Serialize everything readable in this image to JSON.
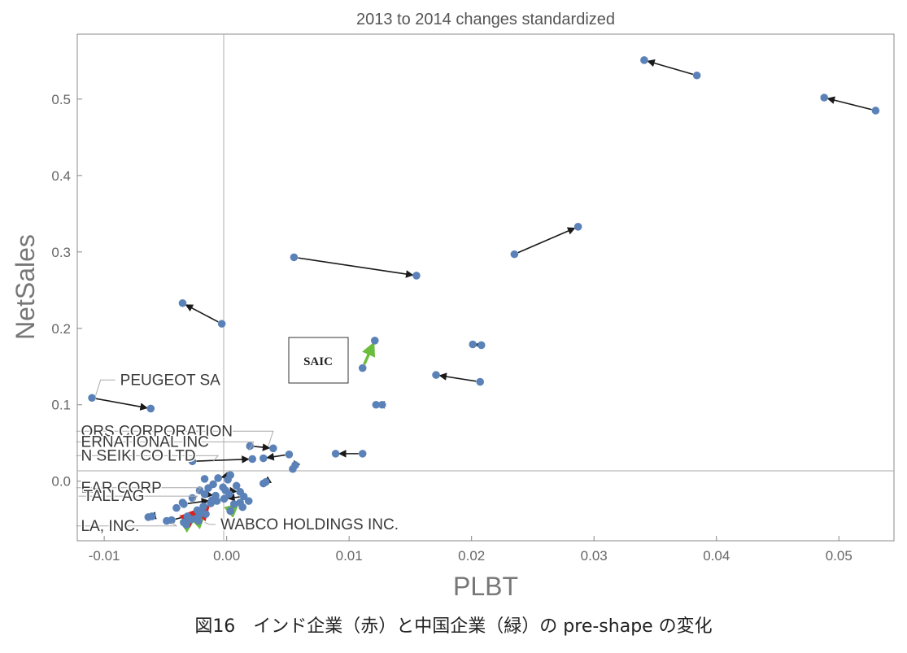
{
  "chart_data": {
    "type": "scatter",
    "title": "2013 to 2014 changes standardized",
    "xlabel": "PLBT",
    "ylabel": "NetSales",
    "xlim": [
      -0.0122,
      0.0545
    ],
    "ylim": [
      -0.078,
      0.585
    ],
    "xticks": [
      -0.01,
      0.0,
      0.01,
      0.02,
      0.03,
      0.04,
      0.05
    ],
    "xtick_labels": [
      "-0.01",
      "0.00",
      "0.01",
      "0.02",
      "0.03",
      "0.04",
      "0.05"
    ],
    "yticks": [
      0.0,
      0.1,
      0.2,
      0.3,
      0.4,
      0.5
    ],
    "ytick_labels": [
      "0.0",
      "0.1",
      "0.2",
      "0.3",
      "0.4",
      "0.5"
    ],
    "grid": false,
    "reference_lines": {
      "x": 0,
      "y": 0
    },
    "colors": {
      "point": "#5b82b8",
      "arrow": "#1a1a1a",
      "china_arrow": "#6dbd3c",
      "india_arrow": "#e02020",
      "axes_line": "#bbbbbb",
      "text": "#555555"
    },
    "series": [
      {
        "values": [
          {
            "x0": 0.0384,
            "y0": 0.531,
            "x1": 0.0341,
            "y1": 0.551
          },
          {
            "x0": 0.053,
            "y0": 0.485,
            "x1": 0.0488,
            "y1": 0.502
          },
          {
            "x0": 0.0235,
            "y0": 0.297,
            "x1": 0.0287,
            "y1": 0.333
          },
          {
            "x0": 0.0055,
            "y0": 0.293,
            "x1": 0.0155,
            "y1": 0.269
          },
          {
            "x0": -0.0004,
            "y0": 0.206,
            "x1": -0.0036,
            "y1": 0.233
          },
          {
            "x0": -0.011,
            "y0": 0.109,
            "x1": -0.0062,
            "y1": 0.095
          },
          {
            "x0": 0.0207,
            "y0": 0.13,
            "x1": 0.0171,
            "y1": 0.139
          },
          {
            "x0": 0.0208,
            "y0": 0.178,
            "x1": 0.0201,
            "y1": 0.179
          },
          {
            "x0": 0.0127,
            "y0": 0.1,
            "x1": 0.0122,
            "y1": 0.1
          },
          {
            "x0": 0.0111,
            "y0": 0.036,
            "x1": 0.0089,
            "y1": 0.036
          },
          {
            "x0": 0.0019,
            "y0": 0.046,
            "x1": 0.0038,
            "y1": 0.043
          },
          {
            "x0": 0.0051,
            "y0": 0.035,
            "x1": 0.003,
            "y1": 0.03
          },
          {
            "x0": -0.0028,
            "y0": 0.026,
            "x1": 0.0021,
            "y1": 0.029
          },
          {
            "x0": 0.0056,
            "y0": 0.021,
            "x1": 0.0054,
            "y1": 0.016
          },
          {
            "x0": 0.0032,
            "y0": -0.001,
            "x1": 0.003,
            "y1": -0.003
          },
          {
            "x0": 0.0003,
            "y0": 0.008,
            "x1": -0.0007,
            "y1": 0.004
          },
          {
            "x0": -0.0001,
            "y0": -0.012,
            "x1": 0.0011,
            "y1": -0.014
          },
          {
            "x0": -0.0035,
            "y0": -0.03,
            "x1": -0.0012,
            "y1": -0.025
          },
          {
            "x0": -0.0061,
            "y0": -0.046,
            "x1": -0.0064,
            "y1": -0.047
          },
          {
            "x0": -0.0018,
            "y0": -0.017,
            "x1": -0.0009,
            "y1": -0.019
          },
          {
            "x0": 0.0014,
            "y0": -0.02,
            "x1": -0.0002,
            "y1": -0.023
          },
          {
            "x0": -0.0045,
            "y0": -0.051,
            "x1": -0.0021,
            "y1": -0.041
          }
        ]
      },
      {
        "values": [
          {
            "x0": 0.0111,
            "y0": 0.148,
            "x1": 0.0121,
            "y1": 0.184
          },
          {
            "x0": 0.0003,
            "y0": -0.039,
            "x1": 0.0011,
            "y1": -0.028
          },
          {
            "x0": -0.0023,
            "y0": -0.052,
            "x1": -0.0017,
            "y1": -0.043
          },
          {
            "x0": -0.0033,
            "y0": -0.057,
            "x1": -0.0025,
            "y1": -0.049
          }
        ]
      },
      {
        "values": [
          {
            "x0": -0.0035,
            "y0": -0.054,
            "x1": -0.0024,
            "y1": -0.038
          },
          {
            "x0": -0.0029,
            "y0": -0.05,
            "x1": -0.0019,
            "y1": -0.033
          },
          {
            "x0": -0.0023,
            "y0": -0.047,
            "x1": -0.0013,
            "y1": -0.029
          }
        ]
      }
    ],
    "extra_points": [
      {
        "x": -0.0018,
        "y": 0.003
      },
      {
        "x": 0.0001,
        "y": 0.002
      },
      {
        "x": -0.0011,
        "y": -0.004
      },
      {
        "x": -0.0003,
        "y": -0.008
      },
      {
        "x": -0.0022,
        "y": -0.012
      },
      {
        "x": 0.0008,
        "y": -0.006
      },
      {
        "x": -0.0036,
        "y": -0.028
      },
      {
        "x": -0.0041,
        "y": -0.035
      },
      {
        "x": -0.0028,
        "y": -0.022
      },
      {
        "x": 0.0013,
        "y": -0.034
      },
      {
        "x": 0.0006,
        "y": -0.03
      },
      {
        "x": 0.0002,
        "y": -0.017
      },
      {
        "x": -0.0008,
        "y": -0.026
      },
      {
        "x": -0.0049,
        "y": -0.052
      },
      {
        "x": -0.0032,
        "y": -0.046
      },
      {
        "x": 0.0018,
        "y": -0.026
      },
      {
        "x": -0.0015,
        "y": -0.009
      }
    ],
    "annotations": [
      {
        "text": "PEUGEOT SA",
        "x": -0.0087,
        "y": 0.126,
        "px": -0.0107,
        "py": 0.112
      },
      {
        "text": "ORS CORPORATION",
        "x": -0.0119,
        "y": 0.059,
        "px": 0.0034,
        "py": 0.046
      },
      {
        "text": "ERNATIONAL INC",
        "x": -0.0119,
        "y": 0.045,
        "px": 0.0018,
        "py": 0.04
      },
      {
        "text": "N SEIKI CO LTD",
        "x": -0.0119,
        "y": 0.027,
        "px": -0.0011,
        "py": 0.026
      },
      {
        "text": "EAR CORP",
        "x": -0.0119,
        "y": -0.015,
        "px": -0.0025,
        "py": -0.016
      },
      {
        "text": "TALL AG",
        "x": -0.0117,
        "y": -0.026,
        "px": -0.0028,
        "py": -0.028
      },
      {
        "text": "LA, INC.",
        "x": -0.0119,
        "y": -0.065,
        "px": -0.0045,
        "py": -0.054
      },
      {
        "text": "WABCO HOLDINGS INC.",
        "x": -0.0005,
        "y": -0.063,
        "px": -0.0018,
        "py": -0.054
      }
    ],
    "callout": {
      "text": "SAIC",
      "x": 0.0073,
      "y": 0.147
    }
  },
  "caption": "図16　インド企業（赤）と中国企業（緑）の pre-shape の変化"
}
